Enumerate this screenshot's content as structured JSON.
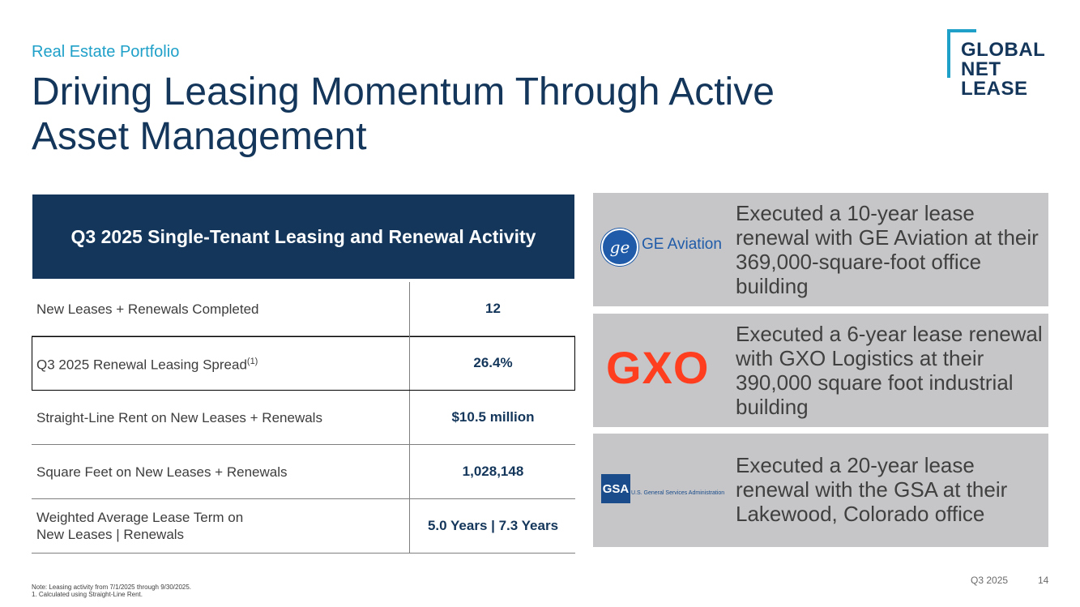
{
  "header": {
    "kicker": "Real Estate Portfolio",
    "title_line1": "Driving Leasing Momentum Through Active",
    "title_line2": "Asset Management"
  },
  "logo": {
    "line1": "GLOBAL",
    "line2": "NET",
    "line3": "LEASE"
  },
  "table": {
    "heading": "Q3 2025 Single-Tenant Leasing and Renewal Activity",
    "rows": [
      {
        "label": "New Leases + Renewals Completed",
        "value": "12"
      },
      {
        "label": "Q3 2025 Renewal Leasing Spread",
        "sup": "(1)",
        "value": "26.4%"
      },
      {
        "label": "Straight-Line Rent on New Leases + Renewals",
        "value": "$10.5 million"
      },
      {
        "label": "Square Feet on New Leases + Renewals",
        "value": "1,028,148"
      },
      {
        "label_line1": "Weighted Average Lease Term on",
        "label_line2": "New Leases | Renewals",
        "value": "5.0 Years | 7.3 Years"
      }
    ]
  },
  "cards": [
    {
      "brand": "GE Aviation",
      "monogram": "ge",
      "text": "Executed a 10-year lease renewal with GE Aviation at their 369,000-square-foot office building"
    },
    {
      "brand": "GXO",
      "text": "Executed a 6-year lease renewal with GXO Logistics at their 390,000 square foot industrial building"
    },
    {
      "brand": "GSA",
      "brand_sub": "U.S. General Services Administration",
      "text": "Executed a 20-year lease renewal with the GSA at their Lakewood, Colorado office"
    }
  ],
  "notes": {
    "line1": "Note: Leasing activity from 7/1/2025 through 9/30/2025.",
    "line2": "1.     Calculated using Straight-Line Rent."
  },
  "footer": {
    "period": "Q3 2025",
    "page": "14"
  },
  "colors": {
    "navy": "#13365a",
    "accent": "#1fa0c9",
    "gxo": "#ff3d1f",
    "card_bg": "#c6c6c8"
  }
}
